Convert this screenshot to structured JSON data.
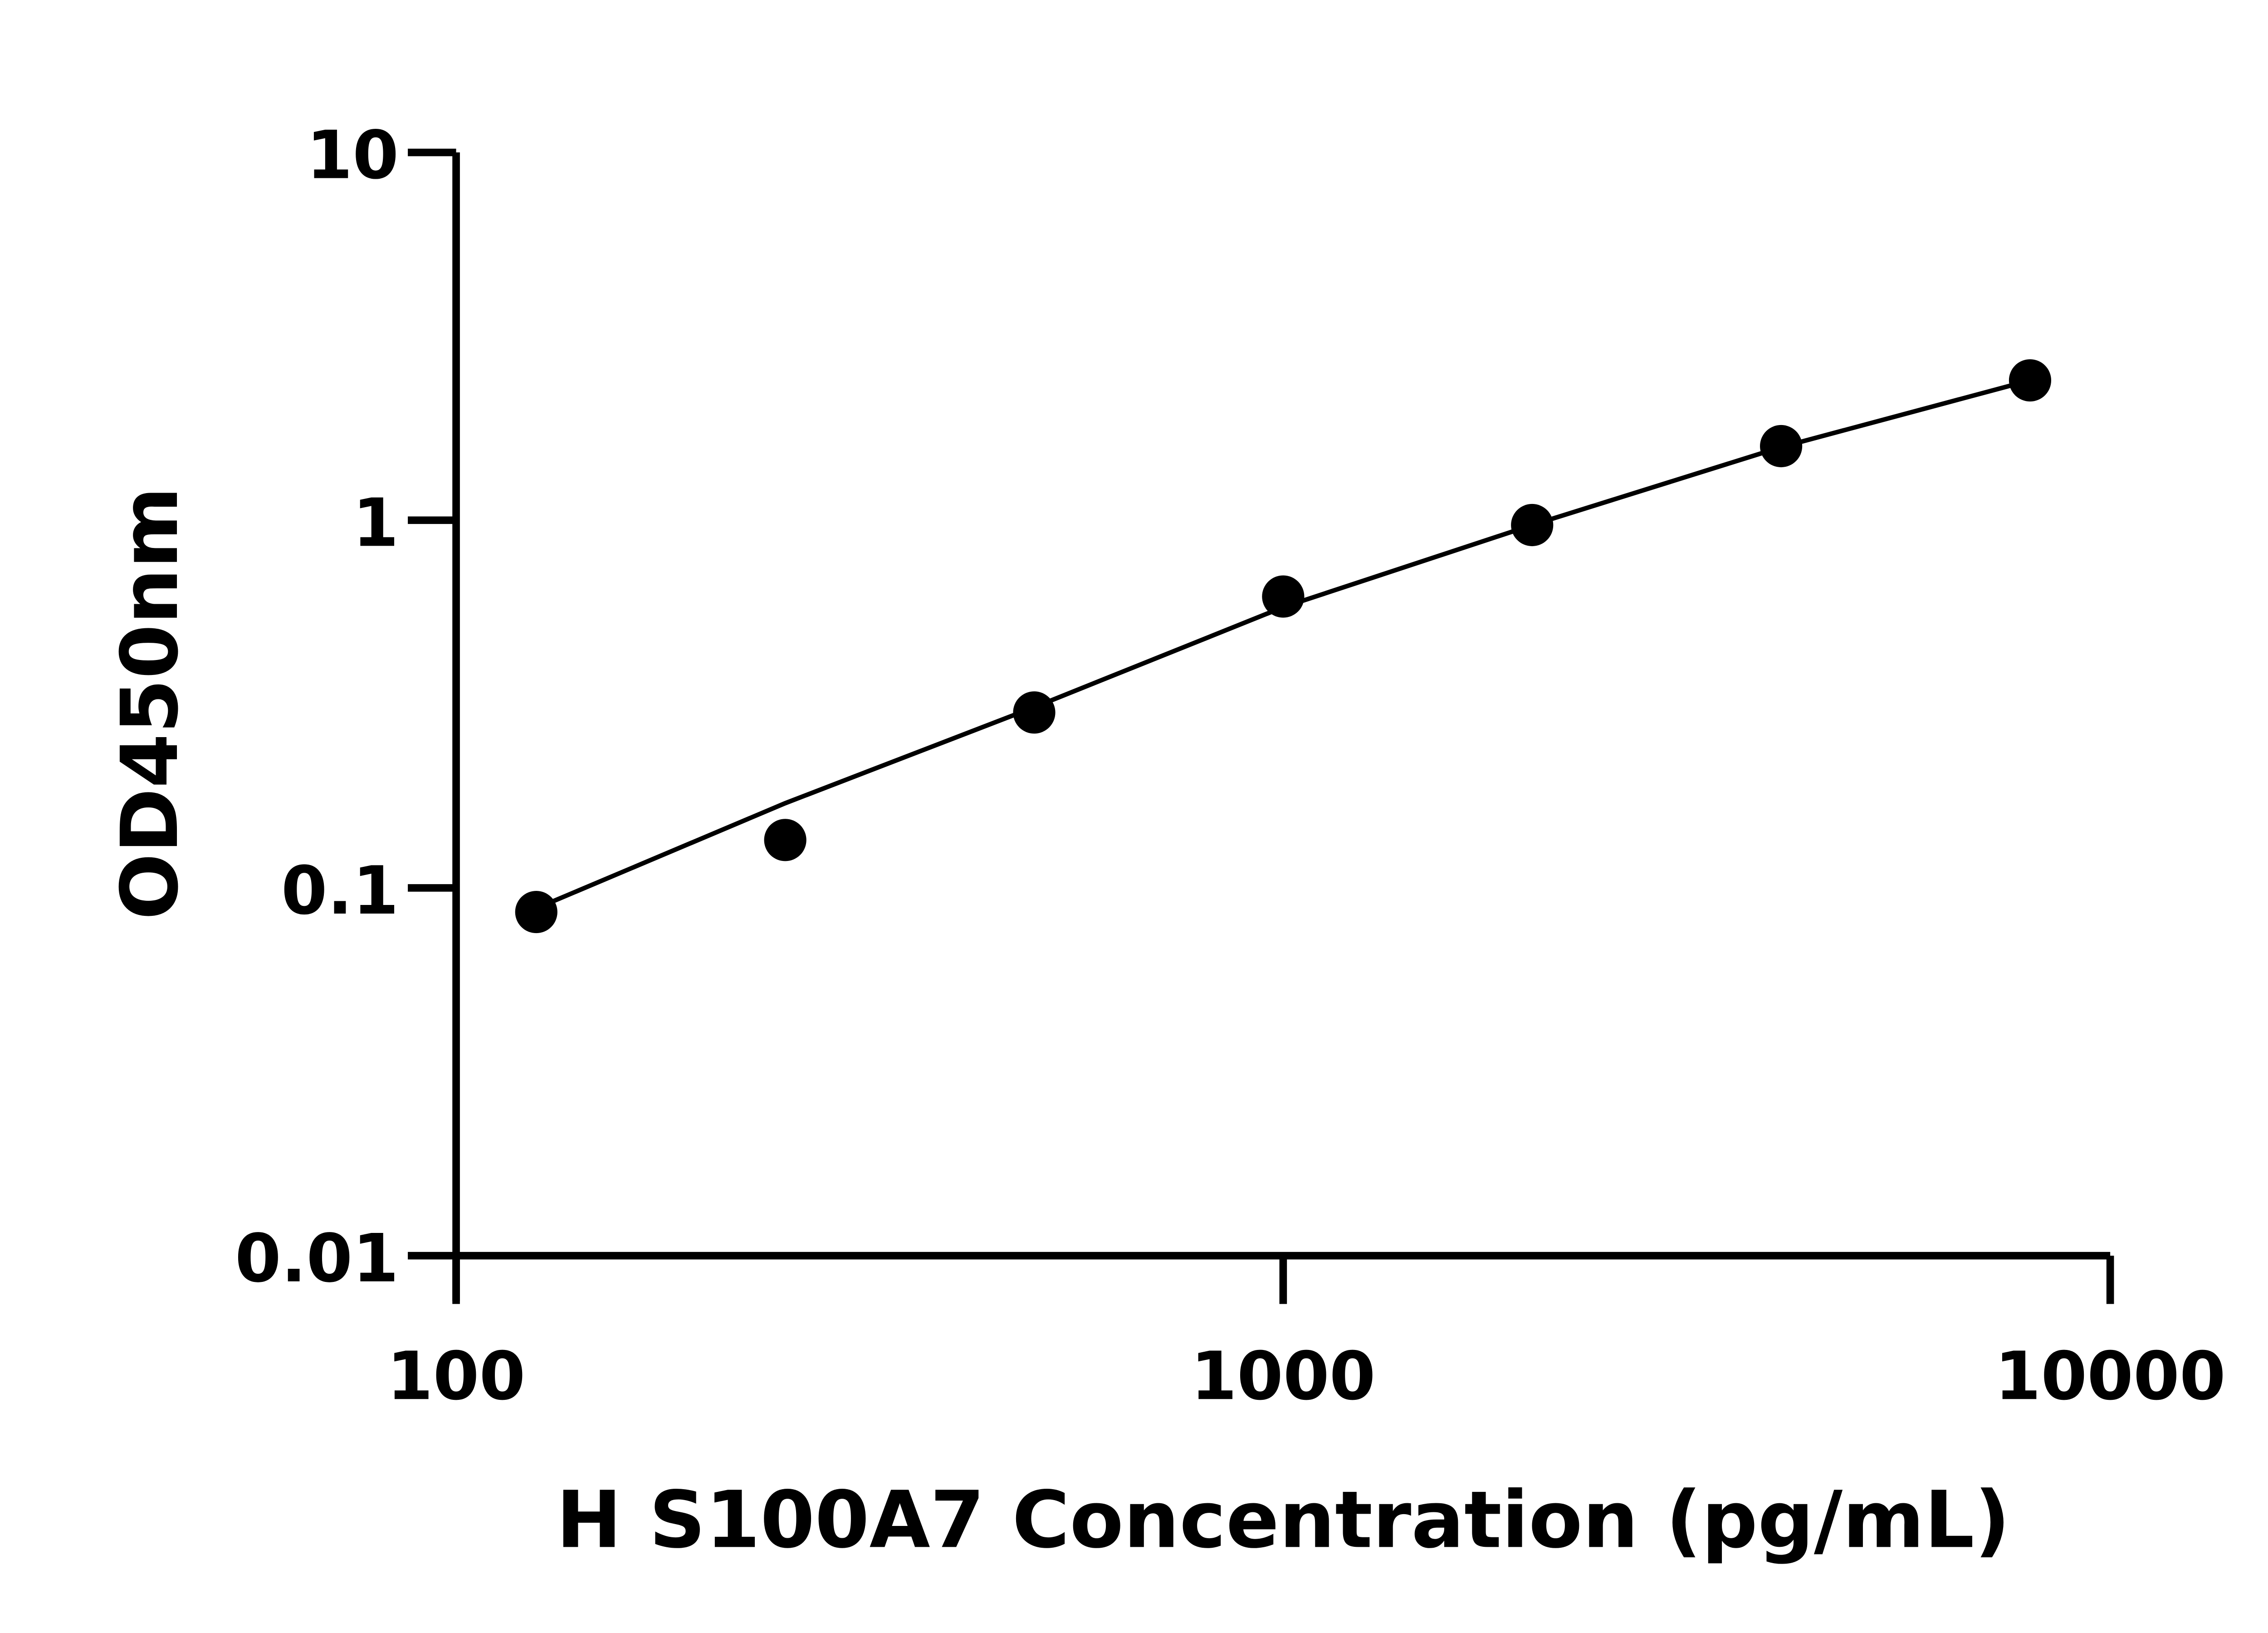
{
  "chart_data": {
    "type": "scatter",
    "title": "",
    "xlabel": "H S100A7 Concentration (pg/mL)",
    "ylabel": "OD450nm",
    "xscale": "log",
    "yscale": "log",
    "xlim": [
      100,
      10000
    ],
    "ylim": [
      0.01,
      10
    ],
    "x_ticks": [
      "100",
      "1000",
      "10000"
    ],
    "y_ticks": [
      "0.01",
      "0.1",
      "1",
      "10"
    ],
    "grid": false,
    "points": {
      "x": [
        125,
        250,
        500,
        1000,
        2000,
        4000,
        8000
      ],
      "y": [
        0.086,
        0.135,
        0.3,
        0.62,
        0.97,
        1.59,
        2.4
      ]
    },
    "fit_curve": {
      "x": [
        125,
        250,
        500,
        1000,
        2000,
        4000,
        8000
      ],
      "y": [
        0.088,
        0.17,
        0.31,
        0.58,
        0.97,
        1.58,
        2.4
      ]
    },
    "colors": {
      "marker": "#000000",
      "line": "#000000",
      "axis": "#000000"
    }
  }
}
